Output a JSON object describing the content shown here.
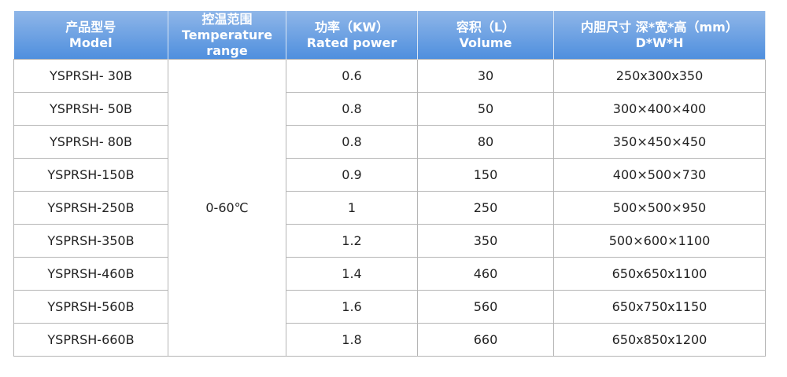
{
  "table": {
    "header": [
      [
        "产品型号",
        "Model"
      ],
      [
        "控温范围",
        "Temperature range"
      ],
      [
        "功率（KW）",
        "Rated power"
      ],
      [
        "容积（L）",
        "Volume"
      ],
      [
        "内胆尺寸 深*宽*高（mm）",
        "D*W*H"
      ]
    ],
    "temperature_range": "0-60℃",
    "rows": [
      [
        "YSPRSH- 30B",
        "0.6",
        "30",
        "250x300x350"
      ],
      [
        "YSPRSH- 50B",
        "0.8",
        "50",
        "300×400×400"
      ],
      [
        "YSPRSH- 80B",
        "0.8",
        "80",
        "350×450×450"
      ],
      [
        "YSPRSH-150B",
        "0.9",
        "150",
        "400×500×730"
      ],
      [
        "YSPRSH-250B",
        "1",
        "250",
        "500×500×950"
      ],
      [
        "YSPRSH-350B",
        "1.2",
        "350",
        "500×600×1100"
      ],
      [
        "YSPRSH-460B",
        "1.4",
        "460",
        "650x650x1100"
      ],
      [
        "YSPRSH-560B",
        "1.6",
        "560",
        "650x750x1150"
      ],
      [
        "YSPRSH-660B",
        "1.8",
        "660",
        "650x850x1200"
      ]
    ]
  }
}
